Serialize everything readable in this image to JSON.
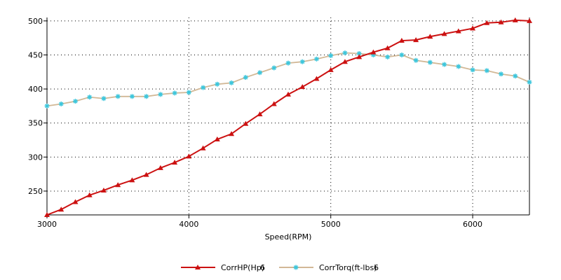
{
  "chart_data": {
    "type": "line",
    "title": "",
    "xlabel": "Speed(RPM)",
    "ylabel": "",
    "xlim": [
      3000,
      6400
    ],
    "ylim": [
      215,
      505
    ],
    "xticks": [
      3000,
      4000,
      5000,
      6000
    ],
    "yticks": [
      250,
      300,
      350,
      400,
      450,
      500
    ],
    "grid": true,
    "legend_position": "bottom-center",
    "x": [
      3000,
      3100,
      3200,
      3300,
      3400,
      3500,
      3600,
      3700,
      3800,
      3900,
      4000,
      4100,
      4200,
      4300,
      4400,
      4500,
      4600,
      4700,
      4800,
      4900,
      5000,
      5100,
      5200,
      5300,
      5400,
      5500,
      5600,
      5700,
      5800,
      5900,
      6000,
      6100,
      6200,
      6300,
      6400
    ],
    "series": [
      {
        "name": "CorrHP(Hp)",
        "run": "6",
        "color": "#cc1111",
        "marker": "triangle",
        "values": [
          215,
          223,
          234,
          244,
          251,
          259,
          266,
          274,
          284,
          292,
          301,
          313,
          326,
          334,
          349,
          363,
          378,
          392,
          403,
          415,
          428,
          440,
          447,
          454,
          460,
          471,
          472,
          477,
          481,
          485,
          489,
          497,
          498,
          501,
          500
        ]
      },
      {
        "name": "CorrTorq(ft-lbs)",
        "run": "6",
        "color": "#d2b896",
        "marker_color": "#3cc6dc",
        "marker": "star",
        "values": [
          375,
          378,
          382,
          388,
          386,
          389,
          389,
          389,
          392,
          394,
          395,
          402,
          407,
          409,
          417,
          424,
          431,
          438,
          440,
          444,
          449,
          453,
          452,
          450,
          447,
          450,
          442,
          439,
          436,
          433,
          428,
          427,
          422,
          419,
          410
        ]
      }
    ]
  }
}
